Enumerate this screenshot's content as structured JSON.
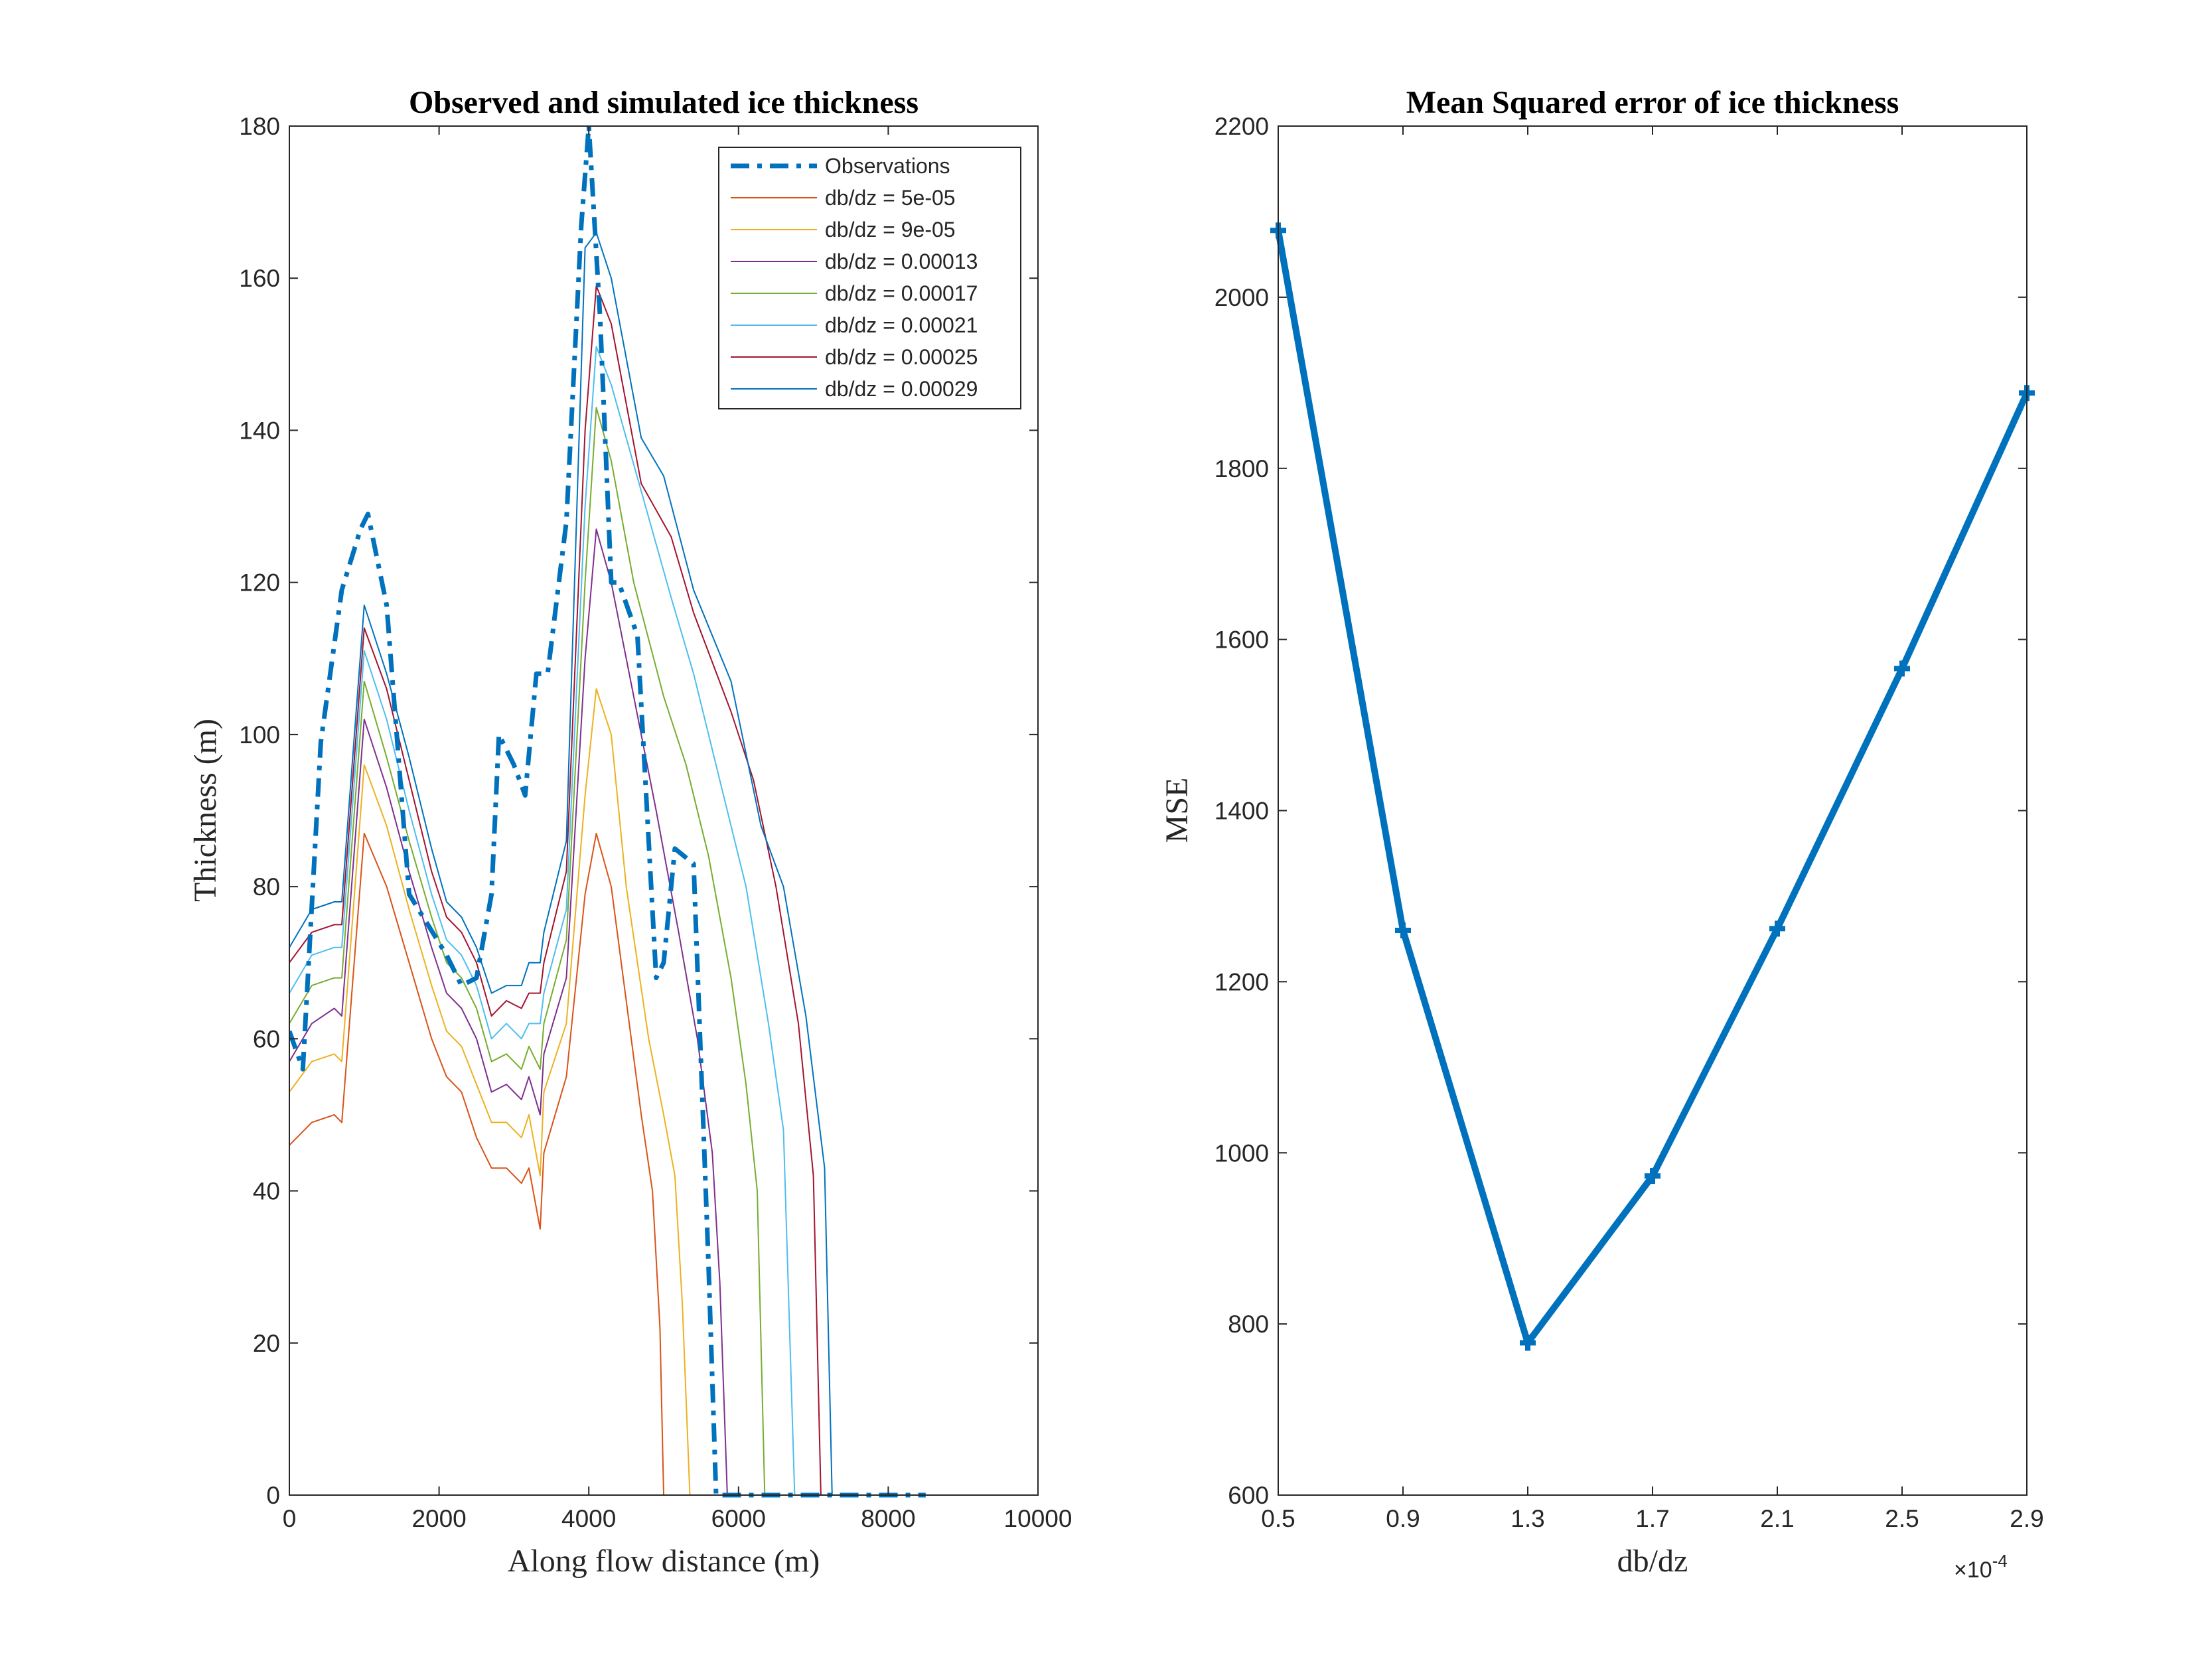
{
  "chart_data": [
    {
      "type": "line",
      "title": "Observed and simulated ice thickness",
      "xlabel": "Along flow distance (m)",
      "ylabel": "Thickness (m)",
      "xlim": [
        0,
        10000
      ],
      "ylim": [
        0,
        180
      ],
      "x_ticks": [
        0,
        2000,
        4000,
        6000,
        8000,
        10000
      ],
      "y_ticks": [
        0,
        20,
        40,
        60,
        80,
        100,
        120,
        140,
        160,
        180
      ],
      "grid": false,
      "legend_position": "top-right",
      "series": [
        {
          "name": "Observations",
          "color": "#0072BD",
          "style": "dashdot",
          "width": 7,
          "x": [
            0,
            180,
            420,
            700,
            950,
            1050,
            1300,
            1600,
            2100,
            2300,
            2500,
            2700,
            2800,
            3000,
            3150,
            3300,
            3450,
            3700,
            3900,
            4000,
            4150,
            4300,
            4400,
            4650,
            4900,
            5000,
            5150,
            5400,
            5600,
            5700,
            6500,
            7500,
            8500
          ],
          "y": [
            61,
            56,
            99,
            119,
            127,
            129,
            117,
            79,
            71,
            67,
            68,
            79,
            100,
            96,
            92,
            108,
            108,
            128,
            167,
            180,
            155,
            120,
            120,
            113,
            68,
            70,
            85,
            83,
            30,
            0,
            0,
            0,
            0
          ]
        },
        {
          "name": "db/dz = 5e-05",
          "color": "#D95319",
          "style": "solid",
          "width": 2,
          "x": [
            0,
            300,
            600,
            700,
            1000,
            1300,
            1600,
            1900,
            2100,
            2300,
            2500,
            2700,
            2900,
            3100,
            3200,
            3350,
            3400,
            3700,
            3950,
            4100,
            4300,
            4500,
            4700,
            4850,
            4950,
            5000
          ],
          "y": [
            46,
            49,
            50,
            49,
            87,
            80,
            70,
            60,
            55,
            53,
            47,
            43,
            43,
            41,
            43,
            35,
            45,
            55,
            79,
            87,
            80,
            65,
            50,
            40,
            22,
            0
          ]
        },
        {
          "name": "db/dz = 9e-05",
          "color": "#EDB120",
          "style": "solid",
          "width": 2,
          "x": [
            0,
            300,
            600,
            700,
            1000,
            1300,
            1600,
            1900,
            2100,
            2300,
            2500,
            2700,
            2900,
            3100,
            3200,
            3350,
            3400,
            3700,
            3950,
            4100,
            4300,
            4500,
            4800,
            5000,
            5150,
            5250,
            5350
          ],
          "y": [
            53,
            57,
            58,
            57,
            96,
            88,
            77,
            67,
            61,
            59,
            54,
            49,
            49,
            47,
            50,
            42,
            53,
            62,
            92,
            106,
            100,
            80,
            60,
            50,
            42,
            25,
            0
          ]
        },
        {
          "name": "db/dz = 0.00013",
          "color": "#7E2F8E",
          "style": "solid",
          "width": 2,
          "x": [
            0,
            300,
            600,
            700,
            1000,
            1300,
            1600,
            1900,
            2100,
            2300,
            2500,
            2700,
            2900,
            3100,
            3200,
            3350,
            3400,
            3700,
            3950,
            4100,
            4300,
            4600,
            4900,
            5200,
            5450,
            5650,
            5750,
            5850
          ],
          "y": [
            57,
            62,
            64,
            63,
            102,
            93,
            82,
            72,
            66,
            64,
            60,
            53,
            54,
            52,
            55,
            50,
            58,
            68,
            110,
            127,
            120,
            105,
            90,
            74,
            60,
            45,
            28,
            0
          ]
        },
        {
          "name": "db/dz = 0.00017",
          "color": "#77AC30",
          "style": "solid",
          "width": 2,
          "x": [
            0,
            300,
            600,
            700,
            1000,
            1300,
            1600,
            1900,
            2100,
            2300,
            2500,
            2700,
            2900,
            3100,
            3200,
            3350,
            3400,
            3700,
            3950,
            4100,
            4300,
            4600,
            5000,
            5300,
            5600,
            5900,
            6100,
            6250,
            6350
          ],
          "y": [
            62,
            67,
            68,
            68,
            107,
            97,
            86,
            76,
            70,
            68,
            64,
            57,
            58,
            56,
            59,
            56,
            62,
            73,
            120,
            143,
            136,
            120,
            105,
            96,
            84,
            68,
            54,
            40,
            0
          ]
        },
        {
          "name": "db/dz = 0.00021",
          "color": "#4DBEEE",
          "style": "solid",
          "width": 2,
          "x": [
            0,
            300,
            600,
            700,
            1000,
            1300,
            1600,
            1900,
            2100,
            2300,
            2500,
            2700,
            2900,
            3100,
            3200,
            3350,
            3400,
            3700,
            3950,
            4100,
            4300,
            4700,
            5100,
            5400,
            5800,
            6100,
            6400,
            6600,
            6750
          ],
          "y": [
            66,
            71,
            72,
            72,
            111,
            102,
            90,
            79,
            73,
            71,
            67,
            60,
            62,
            60,
            62,
            62,
            66,
            77,
            130,
            151,
            146,
            132,
            118,
            108,
            92,
            80,
            62,
            48,
            0
          ]
        },
        {
          "name": "db/dz = 0.00025",
          "color": "#A2142F",
          "style": "solid",
          "width": 2,
          "x": [
            0,
            300,
            600,
            700,
            1000,
            1300,
            1600,
            1900,
            2100,
            2300,
            2500,
            2700,
            2900,
            3100,
            3200,
            3350,
            3400,
            3700,
            3950,
            4100,
            4300,
            4700,
            5100,
            5400,
            5900,
            6200,
            6500,
            6800,
            7000,
            7100
          ],
          "y": [
            70,
            74,
            75,
            75,
            114,
            106,
            94,
            82,
            76,
            74,
            70,
            63,
            65,
            64,
            66,
            66,
            70,
            82,
            140,
            159,
            154,
            133,
            126,
            116,
            103,
            94,
            80,
            62,
            42,
            0
          ]
        },
        {
          "name": "db/dz = 0.00029",
          "color": "#0072BD",
          "style": "solid",
          "width": 2,
          "x": [
            0,
            300,
            600,
            700,
            1000,
            1300,
            1600,
            1900,
            2100,
            2300,
            2500,
            2700,
            2900,
            3100,
            3200,
            3350,
            3400,
            3700,
            3950,
            4100,
            4300,
            4700,
            5000,
            5400,
            5900,
            6300,
            6600,
            6900,
            7150,
            7250
          ],
          "y": [
            72,
            77,
            78,
            78,
            117,
            108,
            97,
            85,
            78,
            76,
            72,
            66,
            67,
            67,
            70,
            70,
            74,
            86,
            164,
            166,
            160,
            139,
            134,
            119,
            107,
            88,
            80,
            63,
            43,
            0
          ]
        }
      ]
    },
    {
      "type": "line",
      "title": "Mean Squared error of ice thickness",
      "xlabel": "db/dz",
      "ylabel": "MSE",
      "x_multiplier": "×10",
      "x_multiplier_exponent": "-4",
      "xlim": [
        0.5,
        2.9
      ],
      "ylim": [
        600,
        2200
      ],
      "x_ticks": [
        "0.5",
        "0.9",
        "1.3",
        "1.7",
        "2.1",
        "2.5",
        "2.9"
      ],
      "y_ticks": [
        600,
        800,
        1000,
        1200,
        1400,
        1600,
        1800,
        2000,
        2200
      ],
      "grid": false,
      "series": [
        {
          "color": "#0072BD",
          "marker": "plus",
          "width": 10,
          "x": [
            0.5,
            0.9,
            1.3,
            1.7,
            2.1,
            2.5,
            2.9
          ],
          "y": [
            2078,
            1260,
            778,
            973,
            1262,
            1566,
            1888
          ]
        }
      ]
    }
  ]
}
